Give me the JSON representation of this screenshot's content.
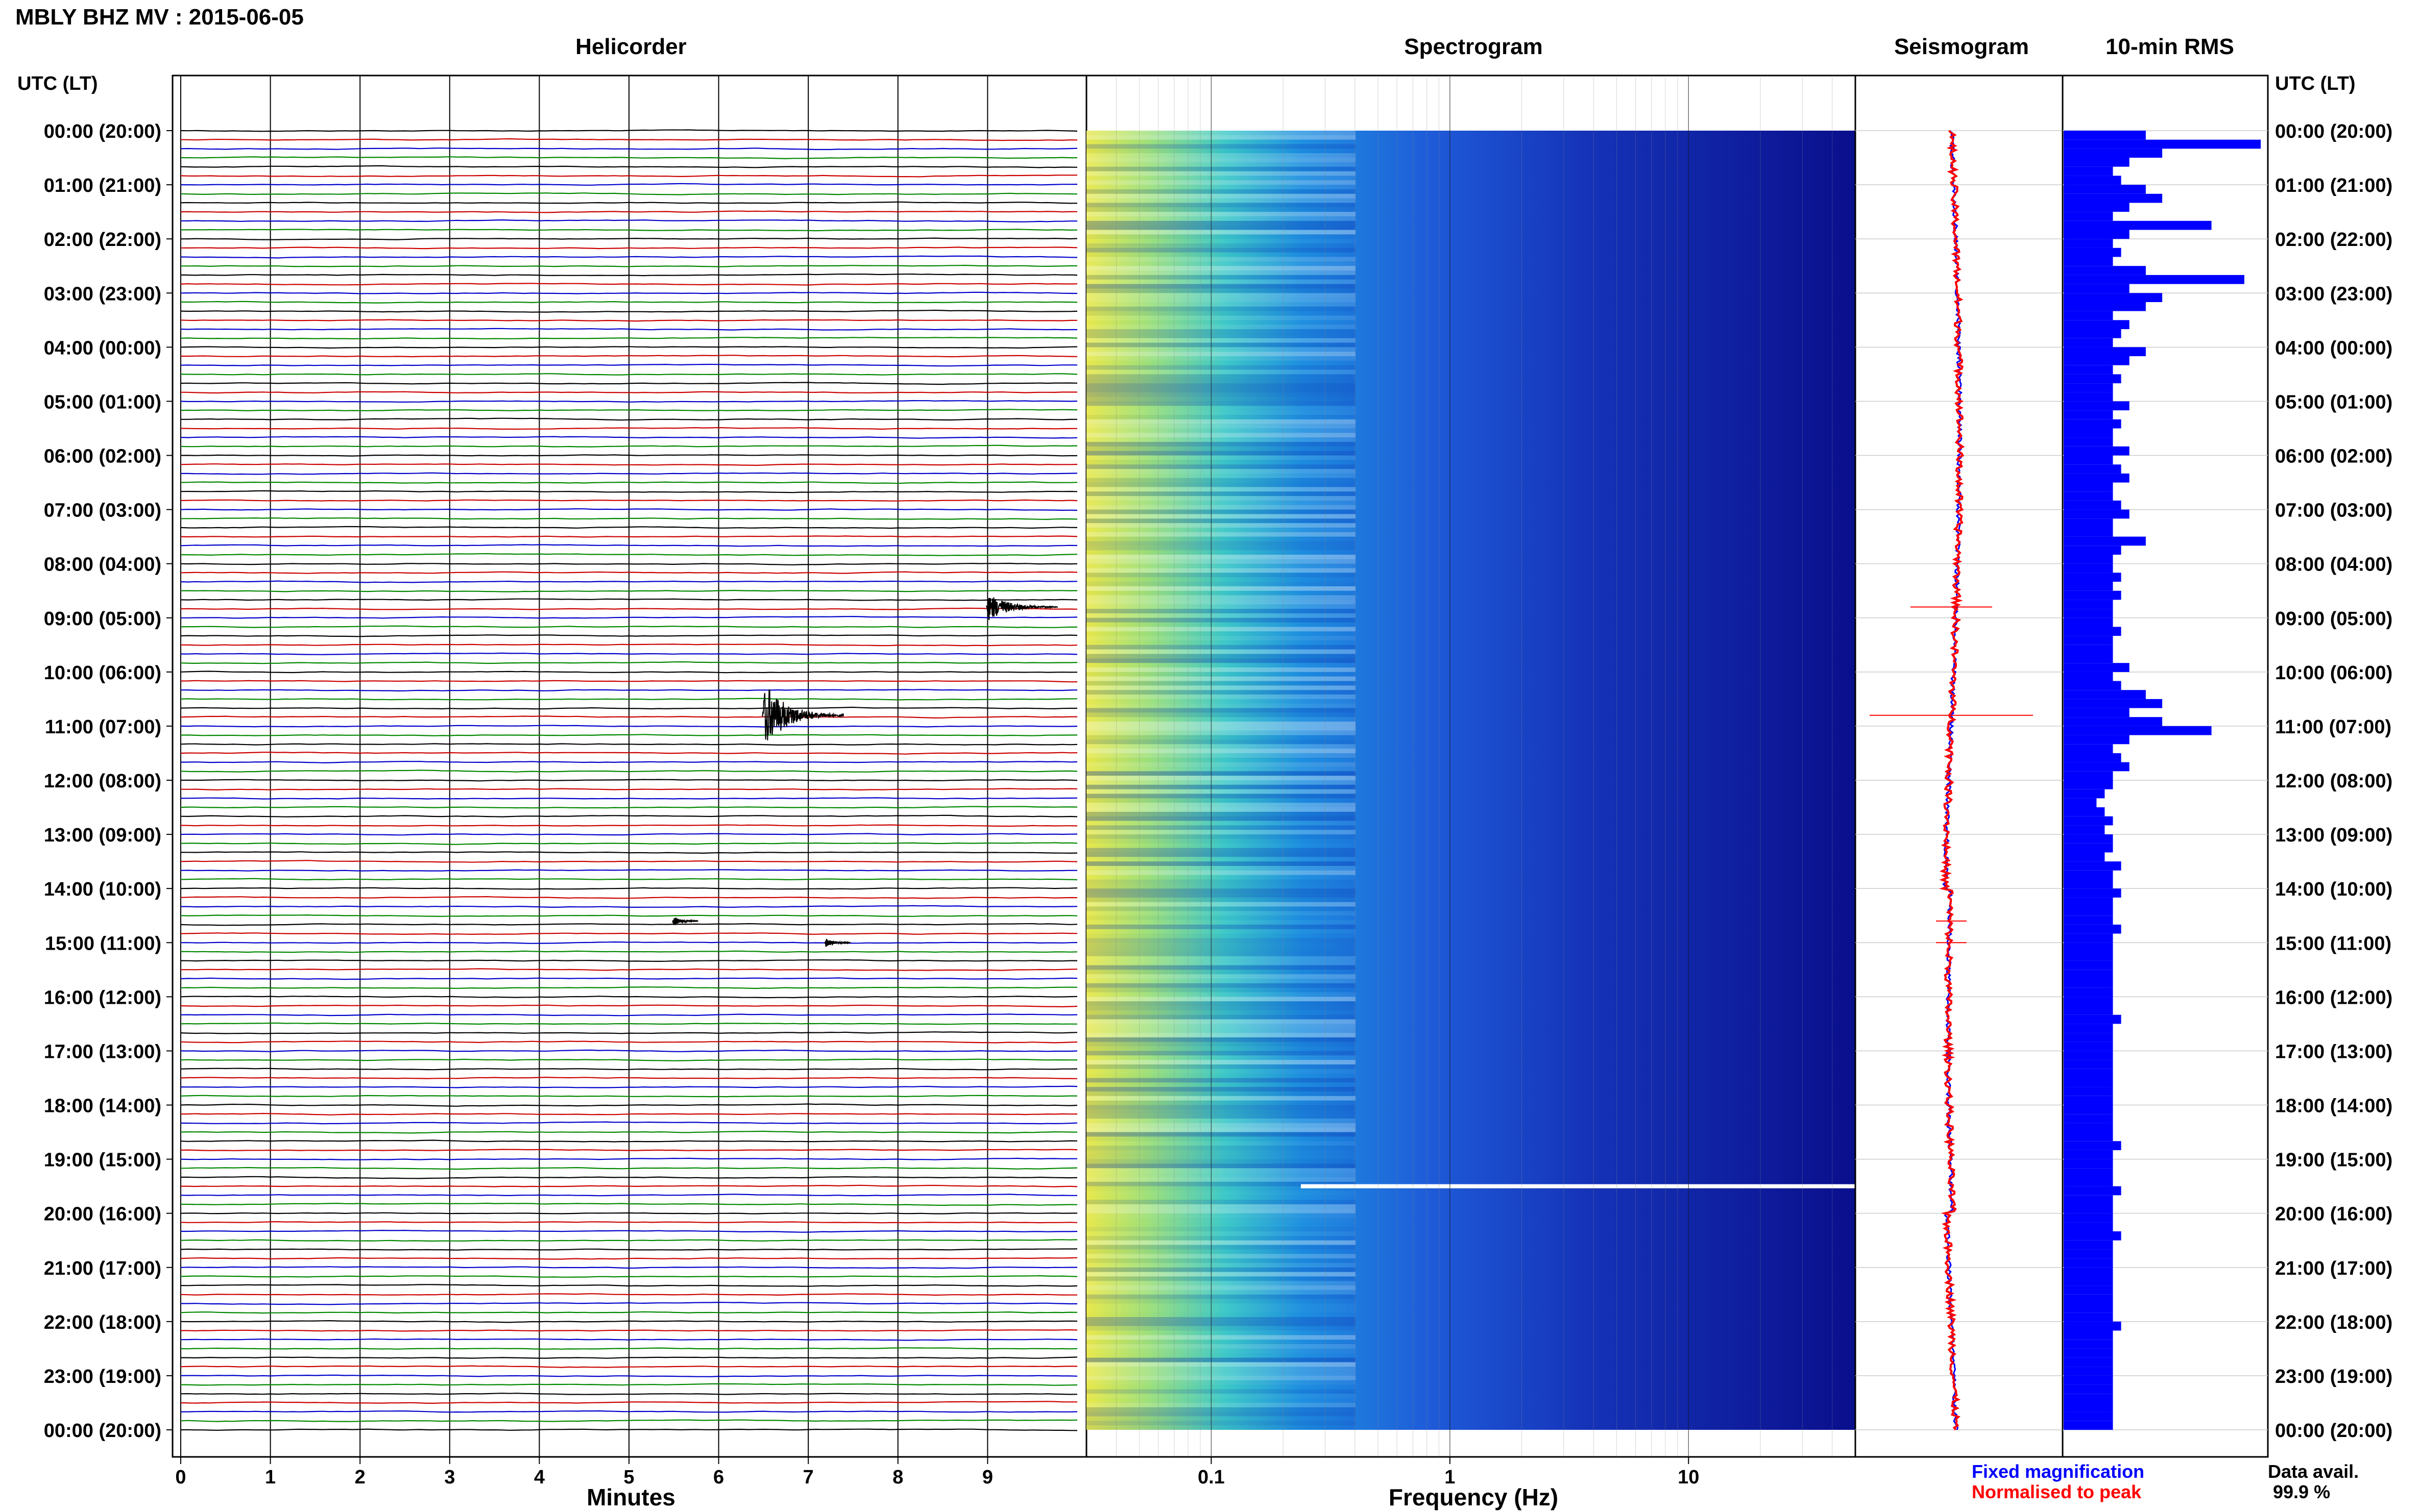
{
  "header": {
    "station_title": "MBLY BHZ MV : 2015-06-05"
  },
  "panels": {
    "helicorder_title": "Helicorder",
    "spectrogram_title": "Spectrogram",
    "seismogram_title": "Seismogram",
    "rms_title": "10-min RMS"
  },
  "axes": {
    "left_time_header": "UTC (LT)",
    "right_time_header": "UTC (LT)",
    "minutes_label": "Minutes",
    "frequency_label": "Frequency (Hz)"
  },
  "time_labels": [
    "00:00 (20:00)",
    "01:00 (21:00)",
    "02:00 (22:00)",
    "03:00 (23:00)",
    "04:00 (00:00)",
    "05:00 (01:00)",
    "06:00 (02:00)",
    "07:00 (03:00)",
    "08:00 (04:00)",
    "09:00 (05:00)",
    "10:00 (06:00)",
    "11:00 (07:00)",
    "12:00 (08:00)",
    "13:00 (09:00)",
    "14:00 (10:00)",
    "15:00 (11:00)",
    "16:00 (12:00)",
    "17:00 (13:00)",
    "18:00 (14:00)",
    "19:00 (15:00)",
    "20:00 (16:00)",
    "21:00 (17:00)",
    "22:00 (18:00)",
    "23:00 (19:00)",
    "00:00 (20:00)"
  ],
  "legend": {
    "fixed_magnification": "Fixed magnification",
    "normalised_to_peak": "Normalised to peak",
    "data_avail_label": "Data avail.",
    "data_avail_value": "99.9 %"
  },
  "colors": {
    "helicorder_traces": [
      "#000000",
      "#cc0000",
      "#0000cc",
      "#008800"
    ],
    "rms_bar": "#0000ff",
    "fixed_magnification": "#0000ff",
    "normalised_to_peak": "#ff0000",
    "spectrogram_low": "#00008b",
    "spectrogram_high": "#ffff00"
  },
  "chart_data": [
    {
      "type": "line",
      "panel": "helicorder",
      "title": "Helicorder",
      "xlabel": "Minutes",
      "x_ticks": [
        "0",
        "1",
        "2",
        "3",
        "4",
        "5",
        "6",
        "7",
        "8",
        "9"
      ],
      "xlim": [
        0,
        10
      ],
      "ylim_hours": [
        0,
        24
      ],
      "lines_per_hour": 6,
      "events": [
        {
          "hour": 8.8,
          "minute": 9.1,
          "amplitude": "moderate"
        },
        {
          "hour": 10.8,
          "minute": 6.6,
          "amplitude": "large"
        },
        {
          "hour": 14.6,
          "minute": 5.6,
          "amplitude": "small"
        },
        {
          "hour": 15.0,
          "minute": 7.3,
          "amplitude": "small"
        }
      ]
    },
    {
      "type": "heatmap",
      "panel": "spectrogram",
      "title": "Spectrogram",
      "xlabel": "Frequency (Hz)",
      "x_scale": "log",
      "x_ticks": [
        "0.1",
        "1",
        "10"
      ],
      "xlim_hz": [
        0.03,
        50
      ],
      "ylim_hours": [
        0,
        24
      ],
      "gap_hour": 19.5
    },
    {
      "type": "line",
      "panel": "seismogram",
      "title": "Seismogram",
      "series": [
        {
          "name": "Fixed magnification"
        },
        {
          "name": "Normalised to peak"
        }
      ]
    },
    {
      "type": "bar",
      "panel": "rms",
      "title": "10-min RMS",
      "orientation": "horizontal",
      "rms_values": [
        0.5,
        1.2,
        0.6,
        0.4,
        0.3,
        0.35,
        0.5,
        0.6,
        0.4,
        0.3,
        0.9,
        0.4,
        0.3,
        0.35,
        0.3,
        0.5,
        1.1,
        0.4,
        0.6,
        0.5,
        0.3,
        0.4,
        0.35,
        0.3,
        0.5,
        0.4,
        0.3,
        0.35,
        0.3,
        0.3,
        0.4,
        0.3,
        0.35,
        0.3,
        0.3,
        0.4,
        0.3,
        0.35,
        0.4,
        0.3,
        0.3,
        0.35,
        0.4,
        0.3,
        0.3,
        0.5,
        0.35,
        0.3,
        0.3,
        0.35,
        0.3,
        0.35,
        0.3,
        0.3,
        0.3,
        0.35,
        0.3,
        0.3,
        0.3,
        0.4,
        0.3,
        0.35,
        0.5,
        0.6,
        0.4,
        0.6,
        0.9,
        0.4,
        0.3,
        0.35,
        0.4,
        0.3,
        0.3,
        0.25,
        0.2,
        0.25,
        0.3,
        0.25,
        0.3,
        0.3,
        0.25,
        0.35,
        0.3,
        0.3,
        0.35,
        0.3,
        0.3,
        0.3,
        0.35,
        0.3,
        0.3,
        0.3,
        0.3,
        0.3,
        0.3,
        0.3,
        0.3,
        0.3,
        0.35,
        0.3,
        0.3,
        0.3,
        0.3,
        0.3,
        0.3,
        0.3,
        0.3,
        0.3,
        0.3,
        0.3,
        0.3,
        0.3,
        0.35,
        0.3,
        0.3,
        0.3,
        0.3,
        0.35,
        0.3,
        0.3,
        0.3,
        0.3,
        0.35,
        0.3,
        0.3,
        0.3,
        0.3,
        0.3,
        0.3,
        0.3,
        0.3,
        0.3,
        0.35,
        0.3,
        0.3,
        0.3,
        0.3,
        0.3,
        0.3,
        0.3,
        0.3,
        0.3,
        0.3,
        0.3
      ]
    }
  ]
}
